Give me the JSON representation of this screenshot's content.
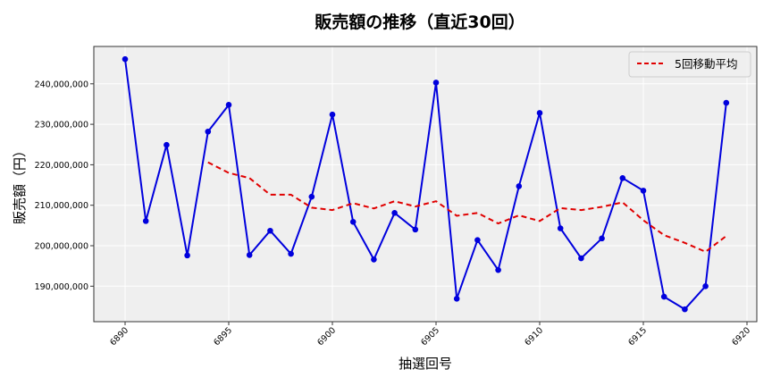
{
  "chart_data": {
    "type": "line",
    "title": "販売額の推移（直近30回）",
    "xlabel": "抽選回号",
    "ylabel": "販売額（円）",
    "x": [
      6890,
      6891,
      6892,
      6893,
      6894,
      6895,
      6896,
      6897,
      6898,
      6899,
      6900,
      6901,
      6902,
      6903,
      6904,
      6905,
      6906,
      6907,
      6908,
      6909,
      6910,
      6911,
      6912,
      6913,
      6914,
      6915,
      6916,
      6917,
      6918,
      6919
    ],
    "series": [
      {
        "name": "販売額",
        "color": "#0000dd",
        "style": "solid-with-markers",
        "values": [
          246100000,
          206100000,
          224900000,
          197600000,
          228200000,
          234800000,
          197700000,
          203700000,
          198000000,
          212100000,
          232400000,
          205900000,
          196600000,
          208100000,
          204000000,
          240300000,
          186900000,
          201400000,
          194000000,
          214700000,
          232800000,
          204300000,
          196900000,
          201800000,
          216700000,
          213600000,
          187400000,
          184300000,
          190000000,
          235300000
        ]
      },
      {
        "name": "5回移動平均",
        "color": "#e00000",
        "style": "dashed",
        "values": [
          null,
          null,
          null,
          null,
          220600000,
          218000000,
          216700000,
          212600000,
          212600000,
          209400000,
          208800000,
          210500000,
          209200000,
          211000000,
          209700000,
          211000000,
          207400000,
          208100000,
          205500000,
          207500000,
          206100000,
          209300000,
          208800000,
          209600000,
          210700000,
          206300000,
          202600000,
          200700000,
          198500000,
          202400000
        ]
      }
    ],
    "x_ticks": [
      6890,
      6895,
      6900,
      6905,
      6910,
      6915,
      6920
    ],
    "x_tick_labels": [
      "6890",
      "6895",
      "6900",
      "6905",
      "6910",
      "6915",
      "6920"
    ],
    "y_ticks": [
      190000000,
      200000000,
      210000000,
      220000000,
      230000000,
      240000000
    ],
    "y_tick_labels": [
      "190,000,000",
      "200,000,000",
      "210,000,000",
      "220,000,000",
      "230,000,000",
      "240,000,000"
    ],
    "xlim": [
      6888.5,
      6920.5
    ],
    "ylim": [
      181000000,
      250000000
    ],
    "grid": true,
    "legend": {
      "position": "upper right",
      "entries": [
        "5回移動平均"
      ]
    },
    "colors": {
      "plot_bg": "#efefef",
      "grid": "#ffffff",
      "axes": "#333333"
    }
  }
}
